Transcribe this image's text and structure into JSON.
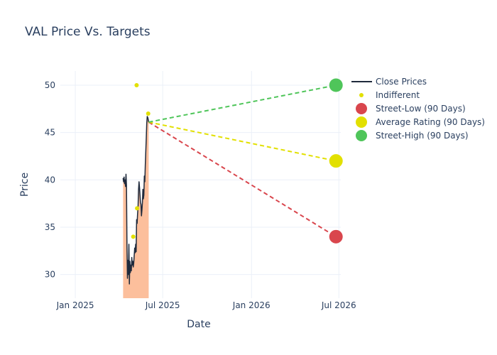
{
  "chart_data": {
    "type": "line",
    "title": "VAL Price Vs. Targets",
    "xlabel": "Date",
    "ylabel": "Price",
    "x_ticks": [
      "Jan 2025",
      "Jul 2025",
      "Jan 2026",
      "Jul 2026"
    ],
    "y_ticks": [
      30,
      35,
      40,
      45,
      50
    ],
    "ylim": [
      27.5,
      51.5
    ],
    "xlim": [
      "2024-12-01",
      "2026-07-05"
    ],
    "grid": true,
    "legend_position": "top-right",
    "series": [
      {
        "name": "Close Prices",
        "kind": "line-area",
        "color": "#1f2a3c",
        "fill_color": "#fcbf9c",
        "points": [
          [
            "2025-04-10",
            40.2
          ],
          [
            "2025-04-11",
            39.8
          ],
          [
            "2025-04-12",
            40.3
          ],
          [
            "2025-04-13",
            39.6
          ],
          [
            "2025-04-14",
            40.0
          ],
          [
            "2025-04-15",
            39.3
          ],
          [
            "2025-04-16",
            40.6
          ],
          [
            "2025-04-17",
            39.4
          ],
          [
            "2025-04-18",
            33.0
          ],
          [
            "2025-04-19",
            29.6
          ],
          [
            "2025-04-20",
            31.5
          ],
          [
            "2025-04-21",
            30.0
          ],
          [
            "2025-04-22",
            33.2
          ],
          [
            "2025-04-23",
            29.0
          ],
          [
            "2025-04-24",
            31.4
          ],
          [
            "2025-04-25",
            30.2
          ],
          [
            "2025-04-26",
            31.0
          ],
          [
            "2025-04-27",
            30.4
          ],
          [
            "2025-04-28",
            31.8
          ],
          [
            "2025-04-29",
            31.0
          ],
          [
            "2025-04-30",
            31.4
          ],
          [
            "2025-05-01",
            30.8
          ],
          [
            "2025-05-02",
            31.2
          ],
          [
            "2025-05-03",
            32.0
          ],
          [
            "2025-05-04",
            32.8
          ],
          [
            "2025-05-05",
            32.3
          ],
          [
            "2025-05-06",
            33.2
          ],
          [
            "2025-05-07",
            32.4
          ],
          [
            "2025-05-08",
            35.8
          ],
          [
            "2025-05-09",
            35.4
          ],
          [
            "2025-05-10",
            36.4
          ],
          [
            "2025-05-11",
            37.2
          ],
          [
            "2025-05-12",
            39.0
          ],
          [
            "2025-05-13",
            39.8
          ],
          [
            "2025-05-14",
            39.2
          ],
          [
            "2025-05-15",
            38.4
          ],
          [
            "2025-05-16",
            37.6
          ],
          [
            "2025-05-17",
            37.4
          ],
          [
            "2025-05-18",
            36.2
          ],
          [
            "2025-05-19",
            36.8
          ],
          [
            "2025-05-20",
            37.6
          ],
          [
            "2025-05-21",
            39.0
          ],
          [
            "2025-05-22",
            38.0
          ],
          [
            "2025-05-23",
            38.4
          ],
          [
            "2025-05-24",
            40.4
          ],
          [
            "2025-05-25",
            39.8
          ],
          [
            "2025-05-26",
            41.6
          ],
          [
            "2025-05-27",
            43.0
          ],
          [
            "2025-05-28",
            44.4
          ],
          [
            "2025-05-29",
            46.0
          ],
          [
            "2025-05-30",
            46.7
          ],
          [
            "2025-05-31",
            46.6
          ],
          [
            "2025-06-01",
            46.4
          ],
          [
            "2025-06-02",
            46.1
          ]
        ]
      },
      {
        "name": "Indifferent",
        "kind": "markers",
        "color": "#e2e000",
        "points": [
          [
            "2025-05-01",
            34.0
          ],
          [
            "2025-05-08",
            50.0
          ],
          [
            "2025-05-09",
            37.0
          ],
          [
            "2025-06-01",
            47.0
          ]
        ]
      },
      {
        "name": "Street-Low (90 Days)",
        "kind": "target",
        "color": "#d9464d",
        "points": [
          [
            "2025-06-02",
            46.1
          ],
          [
            "2026-06-25",
            34.0
          ]
        ]
      },
      {
        "name": "Average Rating (90 Days)",
        "kind": "target",
        "color": "#e2e000",
        "points": [
          [
            "2025-06-02",
            46.1
          ],
          [
            "2026-06-25",
            42.0
          ]
        ]
      },
      {
        "name": "Street-High (90 Days)",
        "kind": "target",
        "color": "#4fc55a",
        "points": [
          [
            "2025-06-02",
            46.1
          ],
          [
            "2026-06-25",
            50.0
          ]
        ]
      }
    ]
  }
}
